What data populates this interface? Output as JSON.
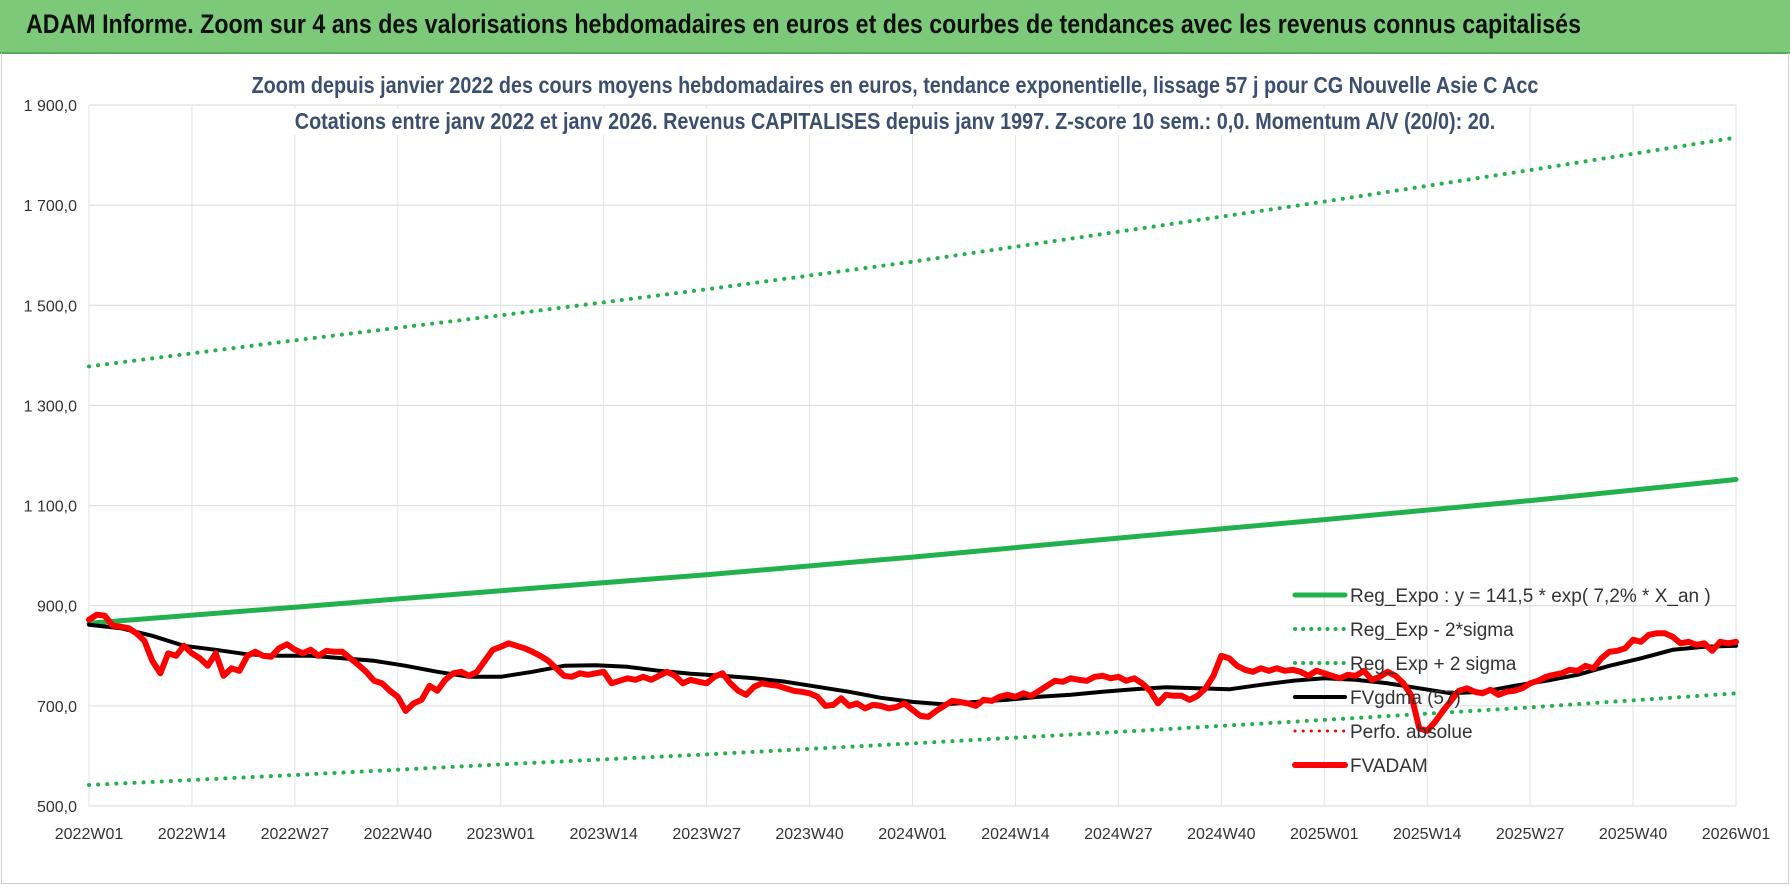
{
  "header": {
    "title": "ADAM Informe. Zoom sur 4 ans des valorisations hebdomadaires en euros et des courbes de tendances avec les revenus connus capitalisés"
  },
  "chart_data": {
    "type": "line",
    "title": "Zoom depuis janvier 2022 des cours moyens hebdomadaires en euros, tendance exponentielle, lissage 57 j pour CG Nouvelle Asie C Acc",
    "subtitle": "Cotations entre janv 2022 et janv 2026. Revenus CAPITALISES depuis janv 1997. Z-score 10 sem.: 0,0. Momentum A/V (20/0): 20.",
    "xlabel": "",
    "ylabel": "",
    "ylim": [
      500,
      1900
    ],
    "yticks": [
      500,
      700,
      900,
      1100,
      1300,
      1500,
      1700,
      1900
    ],
    "ytick_labels": [
      "500,0",
      "700,0",
      "900,0",
      "1 100,0",
      "1 300,0",
      "1 500,0",
      "1 700,0",
      "1 900,0"
    ],
    "xlim": [
      0,
      208
    ],
    "xticks": [
      0,
      13,
      26,
      39,
      52,
      65,
      78,
      91,
      104,
      117,
      130,
      143,
      156,
      169,
      182,
      195,
      208
    ],
    "xtick_labels": [
      "2022W01",
      "2022W14",
      "2022W27",
      "2022W40",
      "2023W01",
      "2023W14",
      "2023W27",
      "2023W40",
      "2024W01",
      "2024W14",
      "2024W27",
      "2024W40",
      "2025W01",
      "2025W14",
      "2025W27",
      "2025W40",
      "2026W01"
    ],
    "grid": true,
    "legend_position": "bottom-right",
    "series": [
      {
        "name": "Reg_Expo : y = 141,5 * exp( 7,2% *  X_an )",
        "style": "solid",
        "color": "#22b14c",
        "points": [
          [
            0,
            865
          ],
          [
            26,
            897
          ],
          [
            52,
            930
          ],
          [
            78,
            962
          ],
          [
            104,
            997
          ],
          [
            130,
            1035
          ],
          [
            156,
            1072
          ],
          [
            182,
            1110
          ],
          [
            208,
            1152
          ]
        ]
      },
      {
        "name": "Reg_Exp - 2*sigma",
        "style": "dotted",
        "color": "#22b14c",
        "points": [
          [
            0,
            542
          ],
          [
            26,
            562
          ],
          [
            52,
            583
          ],
          [
            78,
            603
          ],
          [
            104,
            625
          ],
          [
            130,
            648
          ],
          [
            156,
            672
          ],
          [
            182,
            697
          ],
          [
            208,
            725
          ]
        ]
      },
      {
        "name": "Reg_Exp + 2 sigma",
        "style": "dotted",
        "color": "#22b14c",
        "points": [
          [
            0,
            1378
          ],
          [
            26,
            1430
          ],
          [
            52,
            1480
          ],
          [
            78,
            1532
          ],
          [
            104,
            1587
          ],
          [
            130,
            1647
          ],
          [
            156,
            1707
          ],
          [
            182,
            1770
          ],
          [
            208,
            1835
          ]
        ]
      },
      {
        "name": "FVgdma (57)",
        "style": "solid",
        "color": "#000000",
        "points": [
          [
            0,
            862
          ],
          [
            4,
            855
          ],
          [
            8,
            840
          ],
          [
            12,
            820
          ],
          [
            16,
            812
          ],
          [
            20,
            803
          ],
          [
            24,
            800
          ],
          [
            28,
            800
          ],
          [
            32,
            795
          ],
          [
            36,
            790
          ],
          [
            40,
            780
          ],
          [
            44,
            768
          ],
          [
            48,
            758
          ],
          [
            52,
            758
          ],
          [
            56,
            768
          ],
          [
            60,
            780
          ],
          [
            64,
            781
          ],
          [
            68,
            778
          ],
          [
            72,
            770
          ],
          [
            76,
            764
          ],
          [
            80,
            760
          ],
          [
            84,
            755
          ],
          [
            88,
            748
          ],
          [
            92,
            738
          ],
          [
            96,
            728
          ],
          [
            100,
            716
          ],
          [
            104,
            708
          ],
          [
            108,
            703
          ],
          [
            112,
            708
          ],
          [
            116,
            712
          ],
          [
            120,
            718
          ],
          [
            124,
            722
          ],
          [
            128,
            728
          ],
          [
            132,
            733
          ],
          [
            136,
            737
          ],
          [
            140,
            735
          ],
          [
            144,
            733
          ],
          [
            148,
            742
          ],
          [
            152,
            750
          ],
          [
            156,
            755
          ],
          [
            160,
            752
          ],
          [
            164,
            745
          ],
          [
            168,
            735
          ],
          [
            172,
            725
          ],
          [
            176,
            728
          ],
          [
            180,
            740
          ],
          [
            184,
            750
          ],
          [
            188,
            762
          ],
          [
            192,
            780
          ],
          [
            196,
            795
          ],
          [
            200,
            812
          ],
          [
            204,
            818
          ],
          [
            208,
            820
          ]
        ]
      },
      {
        "name": "Perfo. absolue",
        "style": "dotted",
        "color": "#ff0000",
        "points": []
      },
      {
        "name": "FVADAM",
        "style": "solid",
        "color": "#ff0000",
        "points": [
          [
            0,
            872
          ],
          [
            1,
            882
          ],
          [
            2,
            880
          ],
          [
            3,
            860
          ],
          [
            4,
            858
          ],
          [
            5,
            855
          ],
          [
            6,
            845
          ],
          [
            7,
            830
          ],
          [
            8,
            790
          ],
          [
            9,
            765
          ],
          [
            10,
            805
          ],
          [
            11,
            800
          ],
          [
            12,
            820
          ],
          [
            13,
            805
          ],
          [
            14,
            795
          ],
          [
            15,
            780
          ],
          [
            16,
            805
          ],
          [
            17,
            760
          ],
          [
            18,
            775
          ],
          [
            19,
            770
          ],
          [
            20,
            800
          ],
          [
            21,
            808
          ],
          [
            22,
            800
          ],
          [
            23,
            798
          ],
          [
            24,
            815
          ],
          [
            25,
            823
          ],
          [
            26,
            812
          ],
          [
            27,
            805
          ],
          [
            28,
            812
          ],
          [
            29,
            800
          ],
          [
            30,
            810
          ],
          [
            31,
            808
          ],
          [
            32,
            808
          ],
          [
            33,
            795
          ],
          [
            34,
            782
          ],
          [
            35,
            768
          ],
          [
            36,
            750
          ],
          [
            37,
            745
          ],
          [
            38,
            730
          ],
          [
            39,
            718
          ],
          [
            40,
            690
          ],
          [
            41,
            705
          ],
          [
            42,
            712
          ],
          [
            43,
            740
          ],
          [
            44,
            730
          ],
          [
            45,
            752
          ],
          [
            46,
            765
          ],
          [
            47,
            768
          ],
          [
            48,
            760
          ],
          [
            49,
            768
          ],
          [
            50,
            790
          ],
          [
            51,
            812
          ],
          [
            52,
            818
          ],
          [
            53,
            825
          ],
          [
            54,
            820
          ],
          [
            55,
            815
          ],
          [
            56,
            808
          ],
          [
            57,
            800
          ],
          [
            58,
            790
          ],
          [
            59,
            775
          ],
          [
            60,
            760
          ],
          [
            61,
            758
          ],
          [
            62,
            765
          ],
          [
            63,
            762
          ],
          [
            64,
            765
          ],
          [
            65,
            768
          ],
          [
            66,
            745
          ],
          [
            67,
            750
          ],
          [
            68,
            755
          ],
          [
            69,
            752
          ],
          [
            70,
            758
          ],
          [
            71,
            752
          ],
          [
            72,
            760
          ],
          [
            73,
            768
          ],
          [
            74,
            760
          ],
          [
            75,
            745
          ],
          [
            76,
            752
          ],
          [
            77,
            748
          ],
          [
            78,
            745
          ],
          [
            79,
            758
          ],
          [
            80,
            765
          ],
          [
            81,
            745
          ],
          [
            82,
            730
          ],
          [
            83,
            722
          ],
          [
            84,
            738
          ],
          [
            85,
            745
          ],
          [
            86,
            742
          ],
          [
            87,
            740
          ],
          [
            88,
            735
          ],
          [
            89,
            730
          ],
          [
            90,
            728
          ],
          [
            91,
            725
          ],
          [
            92,
            718
          ],
          [
            93,
            700
          ],
          [
            94,
            702
          ],
          [
            95,
            715
          ],
          [
            96,
            700
          ],
          [
            97,
            705
          ],
          [
            98,
            695
          ],
          [
            99,
            702
          ],
          [
            100,
            700
          ],
          [
            101,
            695
          ],
          [
            102,
            698
          ],
          [
            103,
            705
          ],
          [
            104,
            692
          ],
          [
            105,
            680
          ],
          [
            106,
            678
          ],
          [
            107,
            690
          ],
          [
            108,
            700
          ],
          [
            109,
            710
          ],
          [
            110,
            708
          ],
          [
            111,
            705
          ],
          [
            112,
            700
          ],
          [
            113,
            712
          ],
          [
            114,
            710
          ],
          [
            115,
            718
          ],
          [
            116,
            722
          ],
          [
            117,
            718
          ],
          [
            118,
            725
          ],
          [
            119,
            720
          ],
          [
            120,
            730
          ],
          [
            121,
            740
          ],
          [
            122,
            750
          ],
          [
            123,
            748
          ],
          [
            124,
            755
          ],
          [
            125,
            752
          ],
          [
            126,
            750
          ],
          [
            127,
            758
          ],
          [
            128,
            760
          ],
          [
            129,
            755
          ],
          [
            130,
            758
          ],
          [
            131,
            750
          ],
          [
            132,
            755
          ],
          [
            133,
            745
          ],
          [
            134,
            730
          ],
          [
            135,
            705
          ],
          [
            136,
            722
          ],
          [
            137,
            720
          ],
          [
            138,
            720
          ],
          [
            139,
            712
          ],
          [
            140,
            720
          ],
          [
            141,
            735
          ],
          [
            142,
            760
          ],
          [
            143,
            800
          ],
          [
            144,
            795
          ],
          [
            145,
            780
          ],
          [
            146,
            772
          ],
          [
            147,
            768
          ],
          [
            148,
            775
          ],
          [
            149,
            770
          ],
          [
            150,
            775
          ],
          [
            151,
            770
          ],
          [
            152,
            772
          ],
          [
            153,
            768
          ],
          [
            154,
            760
          ],
          [
            155,
            770
          ],
          [
            156,
            765
          ],
          [
            157,
            760
          ],
          [
            158,
            755
          ],
          [
            159,
            762
          ],
          [
            160,
            760
          ],
          [
            161,
            770
          ],
          [
            162,
            752
          ],
          [
            163,
            758
          ],
          [
            164,
            768
          ],
          [
            165,
            760
          ],
          [
            166,
            745
          ],
          [
            167,
            720
          ],
          [
            168,
            655
          ],
          [
            169,
            650
          ],
          [
            170,
            668
          ],
          [
            171,
            690
          ],
          [
            172,
            710
          ],
          [
            173,
            730
          ],
          [
            174,
            735
          ],
          [
            175,
            728
          ],
          [
            176,
            725
          ],
          [
            177,
            732
          ],
          [
            178,
            722
          ],
          [
            179,
            728
          ],
          [
            180,
            730
          ],
          [
            181,
            735
          ],
          [
            182,
            745
          ],
          [
            183,
            750
          ],
          [
            184,
            758
          ],
          [
            185,
            762
          ],
          [
            186,
            765
          ],
          [
            187,
            772
          ],
          [
            188,
            770
          ],
          [
            189,
            780
          ],
          [
            190,
            775
          ],
          [
            191,
            795
          ],
          [
            192,
            808
          ],
          [
            193,
            810
          ],
          [
            194,
            815
          ],
          [
            195,
            832
          ],
          [
            196,
            828
          ],
          [
            197,
            842
          ],
          [
            198,
            845
          ],
          [
            199,
            845
          ],
          [
            200,
            838
          ],
          [
            201,
            825
          ],
          [
            202,
            828
          ],
          [
            203,
            822
          ],
          [
            204,
            825
          ],
          [
            205,
            810
          ],
          [
            206,
            828
          ],
          [
            207,
            825
          ],
          [
            208,
            828
          ]
        ]
      }
    ]
  }
}
